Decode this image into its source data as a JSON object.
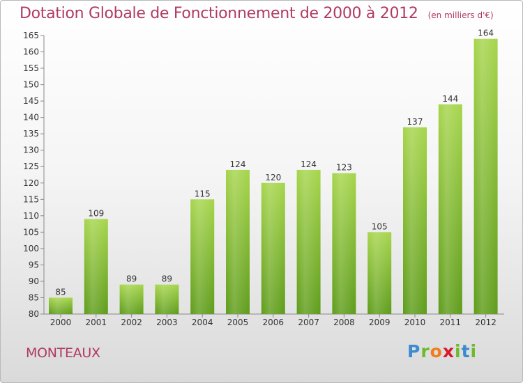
{
  "header": {
    "title": "Dotation Globale de Fonctionnement de 2000 à 2012",
    "unit_note": "(en milliers d'€)"
  },
  "footer": {
    "commune": "MONTEAUX",
    "logo_text": [
      "P",
      "r",
      "o",
      "x",
      "i",
      "t",
      "i"
    ]
  },
  "colors": {
    "bar_top": "#a6d54c",
    "bar_bottom": "#5e9c1a",
    "title": "#b03a62",
    "axis": "#888888"
  },
  "chart_data": {
    "type": "bar",
    "categories": [
      "2000",
      "2001",
      "2002",
      "2003",
      "2004",
      "2005",
      "2006",
      "2007",
      "2008",
      "2009",
      "2010",
      "2011",
      "2012"
    ],
    "values": [
      85,
      109,
      89,
      89,
      115,
      124,
      120,
      124,
      123,
      105,
      137,
      144,
      164
    ],
    "title": "Dotation Globale de Fonctionnement de 2000 à 2012",
    "xlabel": "",
    "ylabel": "",
    "ylim": [
      80,
      165
    ],
    "yticks": [
      80,
      85,
      90,
      95,
      100,
      105,
      110,
      115,
      120,
      125,
      130,
      135,
      140,
      145,
      150,
      155,
      160,
      165
    ],
    "grid": false,
    "data_labels": true
  }
}
